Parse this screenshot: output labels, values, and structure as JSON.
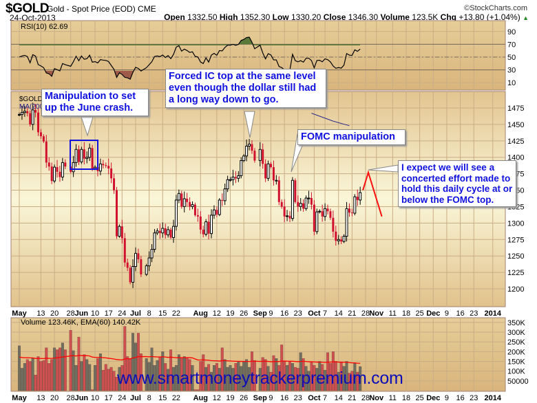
{
  "header": {
    "symbol": "$GOLD",
    "name": "Gold - Spot Price (EOD) CME",
    "date": "24-Oct-2013",
    "copyright": "©StockCharts.com",
    "open_label": "Open",
    "open": "1332.50",
    "high_label": "High",
    "high": "1352.30",
    "low_label": "Low",
    "low": "1330.20",
    "close_label": "Close",
    "close": "1346.30",
    "volume_label": "Volume",
    "volume": "123.5K",
    "chg_label": "Chg",
    "chg": "+13.80 (+1.04%)"
  },
  "annotations": {
    "june_crash": "Manipulation to set up the June crash.",
    "ic_top": "Forced IC top at the same level even though the dollar still had a long way down to go.",
    "fomc": "FOMC manipulation",
    "expect": "I expect we will see a concerted effort made to hold this daily cycle at or below the FOMC top."
  },
  "watermark": "www.smartmoneytrackerpremium.com",
  "colors": {
    "down": "#d0102c",
    "up": "#000000",
    "rsi_over": "#5b7a3a",
    "rsi_under": "#a05a48",
    "vol_down": "#d05050",
    "vol_up": "#707060",
    "ema": "#ff0000",
    "annotation": "#1010e0"
  },
  "chart_data": [
    {
      "type": "line",
      "panel": "rsi",
      "label": "RSI(10) 62.69",
      "ylim": [
        0,
        100
      ],
      "yticks": [
        "90",
        "70",
        "50",
        "30",
        "10"
      ],
      "levels": [
        70,
        50,
        30
      ]
    },
    {
      "type": "candlestick",
      "panel": "price",
      "legend": [
        "$GOLD",
        "MA(200)"
      ],
      "ylim": [
        1175,
        1500
      ],
      "yticks": [
        "1475",
        "1450",
        "1425",
        "1400",
        "1375",
        "1350",
        "1325",
        "1300",
        "1275",
        "1250",
        "1225",
        "1200"
      ],
      "closes": {
        "May": [
          1465,
          1468,
          1470,
          1467,
          1450,
          1472,
          1468,
          1438,
          1432,
          1424,
          1392,
          1386,
          1364,
          1385,
          1378,
          1370,
          1392,
          1386,
          1378,
          1392,
          1412,
          1393
        ],
        "Jun": [
          1412,
          1398,
          1400,
          1414,
          1383,
          1385,
          1379,
          1390,
          1388,
          1387,
          1383,
          1368,
          1350,
          1280,
          1295,
          1277,
          1240,
          1232,
          1210,
          1234
        ],
        "Jul": [
          1254,
          1245,
          1222,
          1235,
          1247,
          1260,
          1285,
          1288,
          1285,
          1292,
          1282,
          1290,
          1278,
          1295,
          1335,
          1345,
          1325,
          1337,
          1332,
          1325,
          1328,
          1312
        ],
        "Aug": [
          1310,
          1290,
          1283,
          1302,
          1284,
          1312,
          1320,
          1313,
          1335,
          1334,
          1352,
          1366,
          1366,
          1370,
          1368,
          1372,
          1395,
          1402,
          1417,
          1420,
          1410,
          1395
        ],
        "Sep": [
          1412,
          1390,
          1368,
          1390,
          1385,
          1365,
          1365,
          1332,
          1325,
          1310,
          1311,
          1307,
          1365,
          1332,
          1325,
          1330,
          1322,
          1338,
          1338,
          1328
        ],
        "Oct": [
          1287,
          1317,
          1318,
          1310,
          1322,
          1318,
          1308,
          1287,
          1273,
          1275,
          1272,
          1280,
          1322,
          1316,
          1315,
          1340,
          1335,
          1346.3
        ]
      },
      "ma_line": [
        [
          "2013-09-30",
          1467
        ],
        [
          "2013-10-10",
          1455
        ],
        [
          "2013-10-18",
          1448
        ]
      ],
      "projection": [
        [
          "2013-10-25",
          1350
        ],
        [
          "2013-10-29",
          1377
        ],
        [
          "2013-11-05",
          1310
        ]
      ]
    },
    {
      "type": "bar",
      "panel": "volume",
      "label": "Volume 123.46K, EMA(60) 140.42K",
      "ylim": [
        0,
        375
      ],
      "yticks": [
        "350K",
        "300K",
        "250K",
        "200K",
        "150K",
        "100K",
        "50000"
      ],
      "values_k": [
        230,
        115,
        140,
        160,
        150,
        165,
        80,
        175,
        150,
        155,
        220,
        140,
        160,
        220,
        210,
        220,
        245,
        210,
        310,
        205,
        130,
        275,
        150,
        185,
        160,
        135,
        5,
        130,
        165,
        190,
        105,
        135,
        110,
        120,
        100,
        70,
        120,
        130,
        330,
        175,
        165,
        295,
        245,
        295,
        190,
        165,
        145,
        220,
        130,
        155,
        170,
        200,
        140,
        110,
        210,
        120,
        130,
        185,
        165,
        175,
        170,
        160,
        130,
        5,
        5,
        150,
        185,
        120,
        135,
        95,
        130,
        140,
        115,
        220,
        160,
        120,
        130,
        115,
        140,
        150,
        125,
        150,
        160,
        120,
        200,
        155,
        115,
        170,
        160,
        125,
        95,
        180,
        165,
        130,
        235,
        150,
        130,
        150,
        140,
        120,
        115,
        195,
        165,
        125,
        100,
        145,
        130,
        115,
        150,
        135,
        105,
        195,
        140,
        200,
        150,
        95,
        145,
        125,
        150,
        90,
        100,
        140,
        95,
        123.46
      ]
    }
  ],
  "x_axis": [
    [
      "May",
      "2013-05-01",
      true
    ],
    [
      "13",
      "2013-05-13",
      false
    ],
    [
      "20",
      "2013-05-20",
      false
    ],
    [
      "28",
      "2013-05-28",
      false
    ],
    [
      "Jun",
      "2013-06-03",
      true
    ],
    [
      "10",
      "2013-06-10",
      false
    ],
    [
      "17",
      "2013-06-17",
      false
    ],
    [
      "24",
      "2013-06-24",
      false
    ],
    [
      "Jul",
      "2013-07-01",
      true
    ],
    [
      "8",
      "2013-07-08",
      false
    ],
    [
      "15",
      "2013-07-15",
      false
    ],
    [
      "22",
      "2013-07-22",
      false
    ],
    [
      "Aug",
      "2013-08-02",
      true
    ],
    [
      "12",
      "2013-08-12",
      false
    ],
    [
      "19",
      "2013-08-19",
      false
    ],
    [
      "26",
      "2013-08-26",
      false
    ],
    [
      "Sep",
      "2013-09-03",
      true
    ],
    [
      "9",
      "2013-09-09",
      false
    ],
    [
      "16",
      "2013-09-16",
      false
    ],
    [
      "23",
      "2013-09-23",
      false
    ],
    [
      "Oct",
      "2013-10-01",
      true
    ],
    [
      "7",
      "2013-10-07",
      false
    ],
    [
      "14",
      "2013-10-14",
      false
    ],
    [
      "21",
      "2013-10-21",
      false
    ],
    [
      "28",
      "2013-10-28",
      false
    ],
    [
      "Nov",
      "2013-11-01",
      true
    ],
    [
      "11",
      "2013-11-11",
      false
    ],
    [
      "18",
      "2013-11-18",
      false
    ],
    [
      "25",
      "2013-11-25",
      false
    ],
    [
      "Dec",
      "2013-12-02",
      true
    ],
    [
      "9",
      "2013-12-09",
      false
    ],
    [
      "16",
      "2013-12-16",
      false
    ],
    [
      "23",
      "2013-12-23",
      false
    ],
    [
      "2014",
      "2014-01-01",
      true
    ]
  ]
}
